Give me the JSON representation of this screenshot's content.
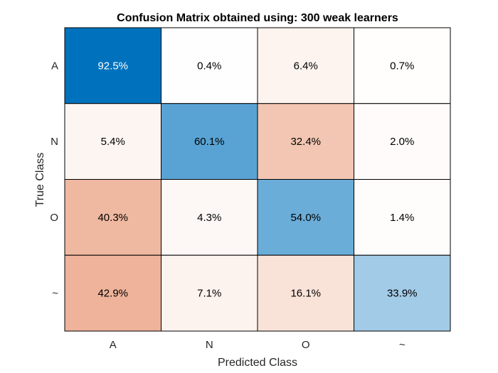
{
  "chart_data": {
    "type": "heatmap",
    "title": "Confusion Matrix obtained using: 300 weak learners",
    "xlabel": "Predicted Class",
    "ylabel": "True Class",
    "x_categories": [
      "A",
      "N",
      "O",
      "~"
    ],
    "y_categories": [
      "A",
      "N",
      "O",
      "~"
    ],
    "values": [
      [
        92.5,
        0.4,
        6.4,
        0.7
      ],
      [
        5.4,
        60.1,
        32.4,
        2.0
      ],
      [
        40.3,
        4.3,
        54.0,
        1.4
      ],
      [
        42.9,
        7.1,
        16.1,
        33.9
      ]
    ],
    "labels": [
      [
        "92.5%",
        "0.4%",
        "6.4%",
        "0.7%"
      ],
      [
        "5.4%",
        "60.1%",
        "32.4%",
        "2.0%"
      ],
      [
        "40.3%",
        "4.3%",
        "54.0%",
        "1.4%"
      ],
      [
        "42.9%",
        "7.1%",
        "16.1%",
        "33.9%"
      ]
    ],
    "colors": {
      "diagonal_high": "#0072bd",
      "diagonal_low": "#ffffff",
      "off_diagonal_high": "#d95319",
      "off_diagonal_low": "#ffffff",
      "grid": "#000000"
    }
  }
}
